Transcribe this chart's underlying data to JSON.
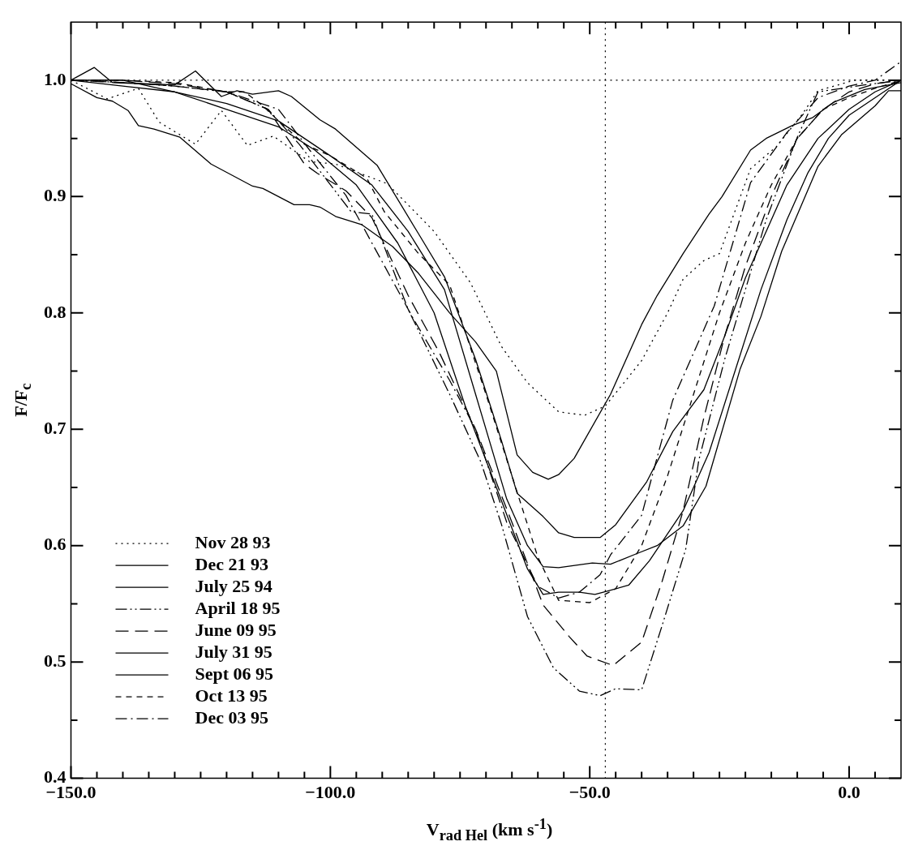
{
  "chart_data": {
    "type": "line",
    "xlabel": "V$_{rad Hel}$ (km s$^{-1}$)",
    "ylabel": "F/F$_{c}$",
    "xlim": [
      -150,
      10
    ],
    "ylim": [
      0.4,
      1.05
    ],
    "xticks": [
      {
        "value": -150,
        "label": "−150.0"
      },
      {
        "value": -145,
        "label": null
      },
      {
        "value": -140,
        "label": null
      },
      {
        "value": -135,
        "label": null
      },
      {
        "value": -130,
        "label": null
      },
      {
        "value": -125,
        "label": null
      },
      {
        "value": -120,
        "label": null
      },
      {
        "value": -115,
        "label": null
      },
      {
        "value": -110,
        "label": null
      },
      {
        "value": -105,
        "label": null
      },
      {
        "value": -100,
        "label": "−100.0"
      },
      {
        "value": -95,
        "label": null
      },
      {
        "value": -90,
        "label": null
      },
      {
        "value": -85,
        "label": null
      },
      {
        "value": -80,
        "label": null
      },
      {
        "value": -75,
        "label": null
      },
      {
        "value": -70,
        "label": null
      },
      {
        "value": -65,
        "label": null
      },
      {
        "value": -60,
        "label": null
      },
      {
        "value": -55,
        "label": null
      },
      {
        "value": -50,
        "label": "−50.0"
      },
      {
        "value": -45,
        "label": null
      },
      {
        "value": -40,
        "label": null
      },
      {
        "value": -35,
        "label": null
      },
      {
        "value": -30,
        "label": null
      },
      {
        "value": -25,
        "label": null
      },
      {
        "value": -20,
        "label": null
      },
      {
        "value": -15,
        "label": null
      },
      {
        "value": -10,
        "label": null
      },
      {
        "value": -5,
        "label": null
      },
      {
        "value": 0,
        "label": "0.0"
      },
      {
        "value": 5,
        "label": null
      }
    ],
    "yticks": [
      0.4,
      {
        "value": 0.45,
        "label": null
      },
      0.5,
      {
        "value": 0.55,
        "label": null
      },
      0.6,
      {
        "value": 0.65,
        "label": null
      },
      0.7,
      {
        "value": 0.75,
        "label": null
      },
      0.8,
      {
        "value": 0.85,
        "label": null
      },
      0.9,
      {
        "value": 0.95,
        "label": null
      },
      {
        "value": 1.0,
        "label": "1.0"
      }
    ],
    "grid": false,
    "legend": "bottom left",
    "marker": "none",
    "ref_lines": [
      {
        "axis": "y",
        "value": 1.0,
        "line_style": "dotted",
        "color": "#000000"
      },
      {
        "axis": "x",
        "value": -47,
        "line_style": "dotted",
        "color": "#000000"
      }
    ],
    "series": [
      {
        "name": "Nov 28 93",
        "color": "#000000",
        "line_style": "dotted",
        "x": [
          -150,
          -143,
          -137,
          -133,
          -126,
          -121,
          -116,
          -111,
          -104,
          -99,
          -89,
          -80,
          -73,
          -67,
          -62,
          -56,
          -51,
          -47,
          -40,
          -35,
          -32,
          -28,
          -25,
          -19,
          -14,
          -9,
          -6,
          1,
          10
        ],
        "values": [
          1.0,
          0.984,
          0.993,
          0.964,
          0.945,
          0.974,
          0.944,
          0.952,
          0.93,
          0.928,
          0.911,
          0.87,
          0.826,
          0.771,
          0.74,
          0.715,
          0.712,
          0.72,
          0.759,
          0.8,
          0.829,
          0.845,
          0.851,
          0.924,
          0.943,
          0.971,
          0.991,
          1.0,
          1.0
        ]
      },
      {
        "name": "Dec 21 93",
        "color": "#000000",
        "line_style": "solid",
        "x": [
          -150,
          -145,
          -142,
          -139,
          -137,
          -134,
          -129,
          -123,
          -115,
          -113,
          -107,
          -104,
          -102,
          -99,
          -94,
          -88,
          -83,
          -77,
          -72,
          -68,
          -64,
          -61,
          -58,
          -56,
          -53,
          -46,
          -40,
          -37,
          -32,
          -27,
          -24.5,
          -19,
          -16,
          -11,
          -7,
          -3,
          3,
          10
        ],
        "values": [
          0.997,
          0.985,
          0.982,
          0.974,
          0.961,
          0.958,
          0.951,
          0.928,
          0.909,
          0.907,
          0.893,
          0.893,
          0.891,
          0.883,
          0.876,
          0.857,
          0.834,
          0.8,
          0.775,
          0.75,
          0.678,
          0.663,
          0.657,
          0.661,
          0.675,
          0.73,
          0.79,
          0.815,
          0.851,
          0.885,
          0.9,
          0.94,
          0.95,
          0.961,
          0.968,
          0.981,
          0.992,
          0.998
        ]
      },
      {
        "name": "July 25 94",
        "color": "#000000",
        "line_style": "solid",
        "x": [
          -150,
          -145.5,
          -142,
          -136,
          -130,
          -126,
          -121,
          -118,
          -115,
          -110,
          -107.5,
          -102,
          -99,
          -91,
          -83,
          -78,
          -72,
          -67,
          -64,
          -59,
          -56,
          -53,
          -48,
          -45,
          -39,
          -34,
          -28,
          -24,
          -20,
          -16,
          -12,
          -6,
          0,
          5,
          10
        ],
        "values": [
          1.0,
          1.011,
          0.998,
          0.997,
          0.996,
          1.008,
          0.986,
          0.991,
          0.988,
          0.991,
          0.986,
          0.966,
          0.958,
          0.927,
          0.868,
          0.831,
          0.76,
          0.69,
          0.645,
          0.625,
          0.611,
          0.607,
          0.607,
          0.618,
          0.655,
          0.698,
          0.734,
          0.78,
          0.83,
          0.87,
          0.91,
          0.95,
          0.975,
          0.99,
          1.0
        ]
      },
      {
        "name": "April 18 95",
        "color": "#000000",
        "line_style": "dashdotdot",
        "x": [
          -150,
          -140,
          -130,
          -120,
          -112,
          -106,
          -96,
          -92,
          -85,
          -77,
          -71,
          -67,
          -62,
          -57,
          -52,
          -48,
          -45,
          -40,
          -36,
          -31.5,
          -29,
          -24,
          -19,
          -16,
          -10,
          -6,
          3,
          10
        ],
        "values": [
          1.0,
          0.998,
          0.995,
          0.99,
          0.975,
          0.945,
          0.887,
          0.885,
          0.803,
          0.73,
          0.672,
          0.618,
          0.539,
          0.495,
          0.475,
          0.471,
          0.477,
          0.476,
          0.532,
          0.597,
          0.673,
          0.76,
          0.835,
          0.88,
          0.951,
          0.99,
          0.996,
          1.0
        ]
      },
      {
        "name": "June 09 95",
        "color": "#000000",
        "line_style": "longdash",
        "x": [
          -150,
          -140,
          -130,
          -120,
          -112,
          -105,
          -102.5,
          -97,
          -92,
          -85,
          -79,
          -72,
          -65,
          -59,
          -54,
          -50.5,
          -45.5,
          -40,
          -36,
          -32,
          -28,
          -24,
          -20,
          -15,
          -10,
          -5,
          0,
          5,
          10
        ],
        "values": [
          1.0,
          1.0,
          0.997,
          0.99,
          0.975,
          0.928,
          0.92,
          0.905,
          0.882,
          0.815,
          0.766,
          0.7,
          0.62,
          0.549,
          0.522,
          0.505,
          0.497,
          0.517,
          0.57,
          0.63,
          0.71,
          0.78,
          0.84,
          0.9,
          0.95,
          0.975,
          0.99,
          0.997,
          1.0
        ]
      },
      {
        "name": "July 31 95",
        "color": "#000000",
        "line_style": "solid",
        "x": [
          -150,
          -140,
          -130,
          -120,
          -110,
          -100,
          -92,
          -85,
          -78,
          -72,
          -66,
          -62,
          -59,
          -56,
          -49.5,
          -46,
          -41,
          -37,
          -32,
          -27.6,
          -21,
          -17,
          -13,
          -6,
          -1.5,
          5,
          7.6,
          10
        ],
        "values": [
          1.0,
          0.995,
          0.99,
          0.98,
          0.965,
          0.935,
          0.91,
          0.87,
          0.82,
          0.73,
          0.64,
          0.6,
          0.582,
          0.581,
          0.585,
          0.584,
          0.593,
          0.6,
          0.617,
          0.651,
          0.752,
          0.797,
          0.853,
          0.926,
          0.953,
          0.978,
          0.991,
          0.991
        ]
      },
      {
        "name": "Sept 06 95",
        "color": "#000000",
        "line_style": "solid",
        "x": [
          -150,
          -140,
          -130,
          -120,
          -110,
          -103,
          -95,
          -87,
          -80,
          -74,
          -68,
          -62,
          -59,
          -56,
          -52,
          -49,
          -46.5,
          -42.5,
          -38.5,
          -32,
          -27,
          -22,
          -17,
          -12,
          -8,
          -4,
          0,
          5,
          10
        ],
        "values": [
          1.0,
          1.0,
          0.99,
          0.975,
          0.96,
          0.94,
          0.91,
          0.86,
          0.8,
          0.72,
          0.65,
          0.58,
          0.558,
          0.56,
          0.56,
          0.558,
          0.561,
          0.566,
          0.587,
          0.63,
          0.68,
          0.75,
          0.82,
          0.88,
          0.92,
          0.95,
          0.97,
          0.985,
          1.0
        ]
      },
      {
        "name": "Oct 13 95",
        "color": "#000000",
        "line_style": "dashed",
        "x": [
          -150,
          -140,
          -130,
          -120,
          -116.5,
          -113,
          -110,
          -105,
          -100,
          -93,
          -89.6,
          -83,
          -77,
          -70,
          -65,
          -60,
          -56,
          -50,
          -45,
          -40,
          -35,
          -30,
          -25,
          -20,
          -15,
          -10,
          -5,
          0,
          5,
          10
        ],
        "values": [
          1.0,
          1.0,
          0.998,
          0.99,
          0.99,
          0.978,
          0.965,
          0.945,
          0.935,
          0.916,
          0.887,
          0.851,
          0.824,
          0.73,
          0.66,
          0.59,
          0.553,
          0.551,
          0.563,
          0.6,
          0.66,
          0.73,
          0.8,
          0.86,
          0.91,
          0.95,
          0.975,
          0.985,
          0.993,
          1.0
        ]
      },
      {
        "name": "Dec 03 95",
        "color": "#000000",
        "line_style": "dashdot",
        "x": [
          -150,
          -140,
          -130,
          -120,
          -110,
          -104,
          -97,
          -84,
          -77,
          -72,
          -66,
          -60,
          -56,
          -52,
          -48,
          -46,
          -40,
          -37,
          -34,
          -26,
          -19,
          -12,
          -6,
          0,
          5,
          10
        ],
        "values": [
          1.0,
          0.998,
          0.995,
          0.99,
          0.975,
          0.94,
          0.901,
          0.795,
          0.742,
          0.7,
          0.62,
          0.565,
          0.555,
          0.56,
          0.575,
          0.592,
          0.626,
          0.676,
          0.725,
          0.806,
          0.912,
          0.955,
          0.985,
          0.995,
          1.0,
          1.016
        ]
      }
    ]
  }
}
